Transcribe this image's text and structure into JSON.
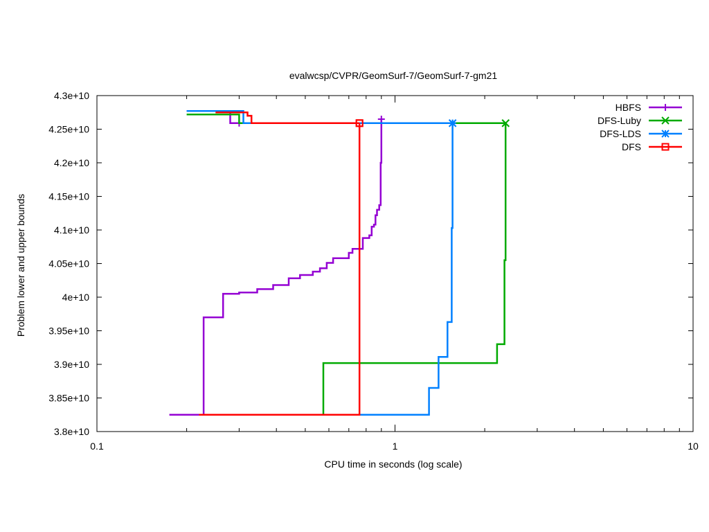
{
  "chart_data": {
    "type": "line",
    "title": "evalwcsp/CVPR/GeomSurf-7/GeomSurf-7-gm21",
    "xlabel": "CPU time in seconds (log scale)",
    "ylabel": "Problem lower and upper bounds",
    "xscale": "log",
    "xlim": [
      0.1,
      10
    ],
    "ylim": [
      38000000000,
      43000000000
    ],
    "xticks": [
      {
        "value": 0.1,
        "label": "0.1"
      },
      {
        "value": 1,
        "label": "1"
      },
      {
        "value": 10,
        "label": "10"
      }
    ],
    "yticks": [
      {
        "value": 38000000000,
        "label": "3.8e+10"
      },
      {
        "value": 38500000000,
        "label": "3.85e+10"
      },
      {
        "value": 39000000000,
        "label": "3.9e+10"
      },
      {
        "value": 39500000000,
        "label": "3.95e+10"
      },
      {
        "value": 40000000000,
        "label": "4e+10"
      },
      {
        "value": 40500000000,
        "label": "4.05e+10"
      },
      {
        "value": 41000000000,
        "label": "4.1e+10"
      },
      {
        "value": 41500000000,
        "label": "4.15e+10"
      },
      {
        "value": 42000000000,
        "label": "4.2e+10"
      },
      {
        "value": 42500000000,
        "label": "4.25e+10"
      },
      {
        "value": 43000000000,
        "label": "4.3e+10"
      }
    ],
    "grid": false,
    "legend_position": "top-right",
    "series": [
      {
        "name": "HBFS",
        "color": "#9400d3",
        "marker": "plus",
        "lower": [
          [
            0.175,
            38250000000
          ],
          [
            0.228,
            38250000000
          ],
          [
            0.228,
            39700000000
          ],
          [
            0.265,
            39700000000
          ],
          [
            0.265,
            40050000000
          ],
          [
            0.3,
            40050000000
          ],
          [
            0.3,
            40070000000
          ],
          [
            0.345,
            40070000000
          ],
          [
            0.345,
            40120000000
          ],
          [
            0.39,
            40120000000
          ],
          [
            0.39,
            40180000000
          ],
          [
            0.44,
            40180000000
          ],
          [
            0.44,
            40280000000
          ],
          [
            0.48,
            40280000000
          ],
          [
            0.48,
            40330000000
          ],
          [
            0.53,
            40330000000
          ],
          [
            0.53,
            40380000000
          ],
          [
            0.56,
            40380000000
          ],
          [
            0.56,
            40430000000
          ],
          [
            0.59,
            40430000000
          ],
          [
            0.59,
            40510000000
          ],
          [
            0.62,
            40510000000
          ],
          [
            0.62,
            40580000000
          ],
          [
            0.7,
            40580000000
          ],
          [
            0.7,
            40660000000
          ],
          [
            0.72,
            40660000000
          ],
          [
            0.72,
            40720000000
          ],
          [
            0.78,
            40720000000
          ],
          [
            0.78,
            40880000000
          ],
          [
            0.82,
            40880000000
          ],
          [
            0.82,
            40920000000
          ],
          [
            0.835,
            40920000000
          ],
          [
            0.835,
            41050000000
          ],
          [
            0.85,
            41050000000
          ],
          [
            0.85,
            41080000000
          ],
          [
            0.86,
            41080000000
          ],
          [
            0.86,
            41220000000
          ],
          [
            0.87,
            41220000000
          ],
          [
            0.87,
            41300000000
          ],
          [
            0.885,
            41300000000
          ],
          [
            0.885,
            41370000000
          ],
          [
            0.895,
            41370000000
          ],
          [
            0.895,
            42000000000
          ],
          [
            0.9,
            42000000000
          ],
          [
            0.9,
            42650000000
          ]
        ],
        "upper": [
          [
            0.2,
            42770000000
          ],
          [
            0.28,
            42770000000
          ],
          [
            0.28,
            42590000000
          ],
          [
            0.3,
            42590000000
          ]
        ]
      },
      {
        "name": "DFS-Luby",
        "color": "#00aa00",
        "marker": "cross",
        "lower": [
          [
            0.575,
            38250000000
          ],
          [
            0.575,
            39020000000
          ],
          [
            2.2,
            39020000000
          ],
          [
            2.2,
            39300000000
          ],
          [
            2.33,
            39300000000
          ],
          [
            2.33,
            40550000000
          ],
          [
            2.35,
            40550000000
          ],
          [
            2.35,
            42590000000
          ]
        ],
        "upper": [
          [
            0.2,
            42720000000
          ],
          [
            0.3,
            42720000000
          ],
          [
            0.3,
            42590000000
          ],
          [
            2.35,
            42590000000
          ]
        ]
      },
      {
        "name": "DFS-LDS",
        "color": "#0080ff",
        "marker": "star",
        "lower": [
          [
            0.76,
            38250000000
          ],
          [
            1.3,
            38250000000
          ],
          [
            1.3,
            38650000000
          ],
          [
            1.4,
            38650000000
          ],
          [
            1.4,
            39110000000
          ],
          [
            1.5,
            39110000000
          ],
          [
            1.5,
            39630000000
          ],
          [
            1.55,
            39630000000
          ],
          [
            1.55,
            41030000000
          ],
          [
            1.56,
            41030000000
          ],
          [
            1.56,
            42590000000
          ]
        ],
        "upper": [
          [
            0.2,
            42770000000
          ],
          [
            0.31,
            42770000000
          ],
          [
            0.31,
            42590000000
          ],
          [
            1.56,
            42590000000
          ]
        ]
      },
      {
        "name": "DFS",
        "color": "#ff0000",
        "marker": "box",
        "lower": [
          [
            0.22,
            38250000000
          ],
          [
            0.76,
            38250000000
          ],
          [
            0.76,
            42590000000
          ]
        ],
        "upper": [
          [
            0.25,
            42750000000
          ],
          [
            0.32,
            42750000000
          ],
          [
            0.32,
            42700000000
          ],
          [
            0.33,
            42700000000
          ],
          [
            0.33,
            42590000000
          ],
          [
            0.76,
            42590000000
          ]
        ]
      }
    ]
  }
}
